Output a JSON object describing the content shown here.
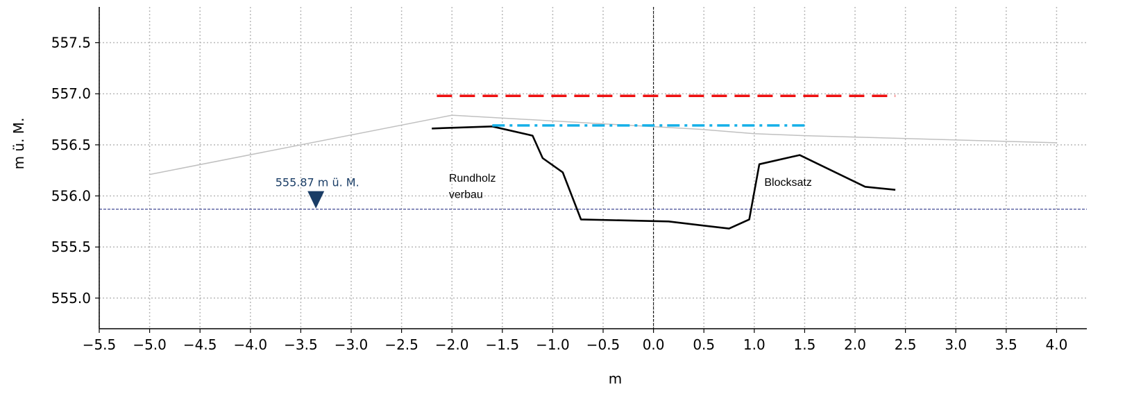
{
  "chart_data": {
    "type": "line",
    "title": "",
    "xlabel": "m",
    "ylabel": "m ü. M.",
    "xlim": [
      -5.5,
      4.3
    ],
    "ylim": [
      554.7,
      557.85
    ],
    "grid": true,
    "x_ticks": [
      -5.5,
      -5.0,
      -4.5,
      -4.0,
      -3.5,
      -3.0,
      -2.5,
      -2.0,
      -1.5,
      -1.0,
      -0.5,
      0.0,
      0.5,
      1.0,
      1.5,
      2.0,
      2.5,
      3.0,
      3.5,
      4.0
    ],
    "x_tick_labels": [
      "−5.5",
      "−5.0",
      "−4.5",
      "−4.0",
      "−3.5",
      "−3.0",
      "−2.5",
      "−2.0",
      "−1.5",
      "−1.0",
      "−0.5",
      "0.0",
      "0.5",
      "1.0",
      "1.5",
      "2.0",
      "2.5",
      "3.0",
      "3.5",
      "4.0"
    ],
    "y_ticks": [
      555.0,
      555.5,
      556.0,
      556.5,
      557.0,
      557.5
    ],
    "y_tick_labels": [
      "555.0",
      "555.5",
      "556.0",
      "556.5",
      "557.0",
      "557.5"
    ],
    "series": [
      {
        "style": "solid",
        "color": "#c0c0c0",
        "x": [
          -5.0,
          -2.0,
          0.5,
          1.0,
          1.5,
          4.0
        ],
        "y": [
          556.21,
          556.79,
          556.65,
          556.61,
          556.59,
          556.52
        ]
      },
      {
        "style": "solid",
        "color": "#000000",
        "x": [
          -2.2,
          -1.6,
          -1.2,
          -1.1,
          -0.9,
          -0.72,
          0.15,
          0.75,
          0.95,
          1.05,
          1.45,
          2.1,
          2.4
        ],
        "y": [
          556.66,
          556.68,
          556.59,
          556.37,
          556.23,
          555.77,
          555.75,
          555.68,
          555.77,
          556.31,
          556.4,
          556.09,
          556.06
        ]
      },
      {
        "style": "dashed",
        "color": "#ee1111",
        "x": [
          -2.15,
          2.4
        ],
        "y": [
          556.98,
          556.98
        ]
      },
      {
        "style": "dashdot",
        "color": "#15b0e8",
        "x": [
          -1.6,
          1.5
        ],
        "y": [
          556.69,
          556.69
        ]
      }
    ],
    "reference_lines": {
      "water_level": {
        "y": 555.87,
        "color": "#1a237e",
        "style": "dashed"
      },
      "axis_line": {
        "x": 0.0,
        "color": "#000000",
        "style": "dashed"
      }
    },
    "water_level_marker": {
      "x": -3.35,
      "y": 555.87,
      "label": "555.87 m ü. M.",
      "color": "#1a3d66"
    },
    "annotations": [
      {
        "text": "Rundholz",
        "x": -2.03,
        "y": 556.14
      },
      {
        "text": "verbau",
        "x": -2.03,
        "y": 555.98
      },
      {
        "text": "Blocksatz",
        "x": 1.1,
        "y": 556.1
      }
    ]
  }
}
